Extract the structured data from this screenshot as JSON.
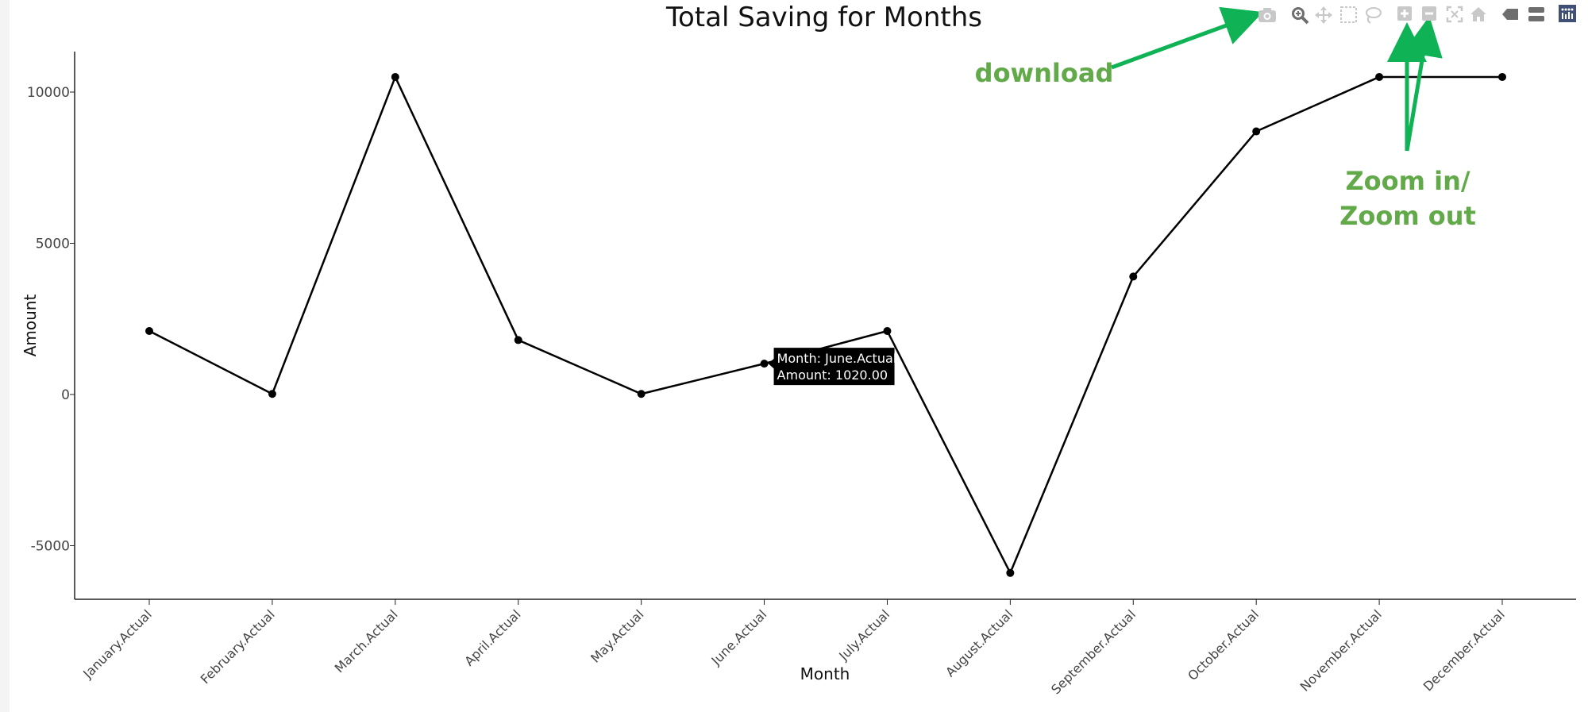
{
  "chart_data": {
    "type": "line",
    "title": "Total Saving for Months",
    "xlabel": "Month",
    "ylabel": "Amount",
    "categories": [
      "January.Actual",
      "February.Actual",
      "March.Actual",
      "April.Actual",
      "May.Actual",
      "June.Actual",
      "July.Actual",
      "August.Actual",
      "September.Actual",
      "October.Actual",
      "November.Actual",
      "December.Actual"
    ],
    "values": [
      2100,
      20,
      10500,
      1800,
      20,
      1020,
      2100,
      -5900,
      3900,
      8700,
      10500,
      10500
    ],
    "ylim": [
      -6700,
      11300
    ],
    "yticks": [
      10000,
      5000,
      0,
      -5000
    ],
    "ytick_labels": [
      "10000",
      "5000",
      "0",
      "-5000"
    ],
    "grid": false,
    "line_color": "#000000"
  },
  "tooltip": {
    "line1": "Month: June.Actual",
    "line2": "Amount:  1020.00",
    "category_index": 5
  },
  "annotations": {
    "download_label": "download",
    "zoom_label_line1": "Zoom in/",
    "zoom_label_line2": "Zoom out",
    "color": "#62a94a",
    "arrow_color": "#0fb356"
  },
  "modebar": {
    "buttons": [
      "camera-icon",
      "zoom-icon",
      "pan-icon",
      "box-select-icon",
      "lasso-select-icon",
      "zoom-in-icon",
      "zoom-out-icon",
      "autoscale-icon",
      "reset-axes-icon",
      "spike-lines-icon",
      "hover-compare-icon",
      "plotly-logo-icon"
    ],
    "icon_color": "#c8c8c8",
    "active_color": "#6e6e6e",
    "logo_color": "#3f4f75"
  }
}
